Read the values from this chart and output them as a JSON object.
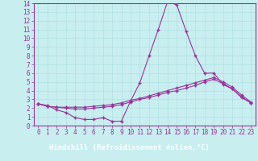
{
  "title": "",
  "xlabel": "Windchill (Refroidissement éolien,°C)",
  "ylabel": "",
  "bg_color": "#c8eef0",
  "xlabel_bg": "#993399",
  "line_color": "#993399",
  "xlim": [
    -0.5,
    23.5
  ],
  "ylim": [
    0,
    14
  ],
  "xticks": [
    0,
    1,
    2,
    3,
    4,
    5,
    6,
    7,
    8,
    9,
    10,
    11,
    12,
    13,
    14,
    15,
    16,
    17,
    18,
    19,
    20,
    21,
    22,
    23
  ],
  "yticks": [
    0,
    1,
    2,
    3,
    4,
    5,
    6,
    7,
    8,
    9,
    10,
    11,
    12,
    13,
    14
  ],
  "line1_x": [
    0,
    1,
    2,
    3,
    4,
    5,
    6,
    7,
    8,
    9,
    10,
    11,
    12,
    13,
    14,
    15,
    16,
    17,
    18,
    19,
    20,
    21,
    22,
    23
  ],
  "line1_y": [
    2.5,
    2.3,
    1.8,
    1.5,
    0.9,
    0.7,
    0.7,
    0.9,
    0.5,
    0.5,
    2.8,
    4.9,
    8.0,
    11.0,
    14.2,
    13.8,
    10.8,
    8.0,
    6.0,
    6.0,
    4.7,
    4.2,
    3.2,
    2.6
  ],
  "line2_x": [
    0,
    1,
    2,
    3,
    4,
    5,
    6,
    7,
    8,
    9,
    10,
    11,
    12,
    13,
    14,
    15,
    16,
    17,
    18,
    19,
    20,
    21,
    22,
    23
  ],
  "line2_y": [
    2.5,
    2.2,
    2.1,
    2.0,
    1.9,
    1.9,
    2.0,
    2.1,
    2.2,
    2.4,
    2.7,
    3.0,
    3.2,
    3.5,
    3.8,
    4.0,
    4.3,
    4.6,
    5.0,
    5.3,
    4.8,
    4.2,
    3.3,
    2.6
  ],
  "line3_x": [
    0,
    1,
    2,
    3,
    4,
    5,
    6,
    7,
    8,
    9,
    10,
    11,
    12,
    13,
    14,
    15,
    16,
    17,
    18,
    19,
    20,
    21,
    22,
    23
  ],
  "line3_y": [
    2.5,
    2.2,
    2.1,
    2.1,
    2.1,
    2.1,
    2.2,
    2.3,
    2.4,
    2.6,
    2.9,
    3.1,
    3.4,
    3.7,
    4.0,
    4.3,
    4.6,
    4.9,
    5.2,
    5.5,
    5.0,
    4.4,
    3.5,
    2.7
  ],
  "marker": "+",
  "markersize": 3.0,
  "linewidth": 0.8,
  "grid_color": "#aadddd",
  "xlabel_fontsize": 6.5,
  "tick_fontsize": 5.5,
  "spine_color": "#993399"
}
